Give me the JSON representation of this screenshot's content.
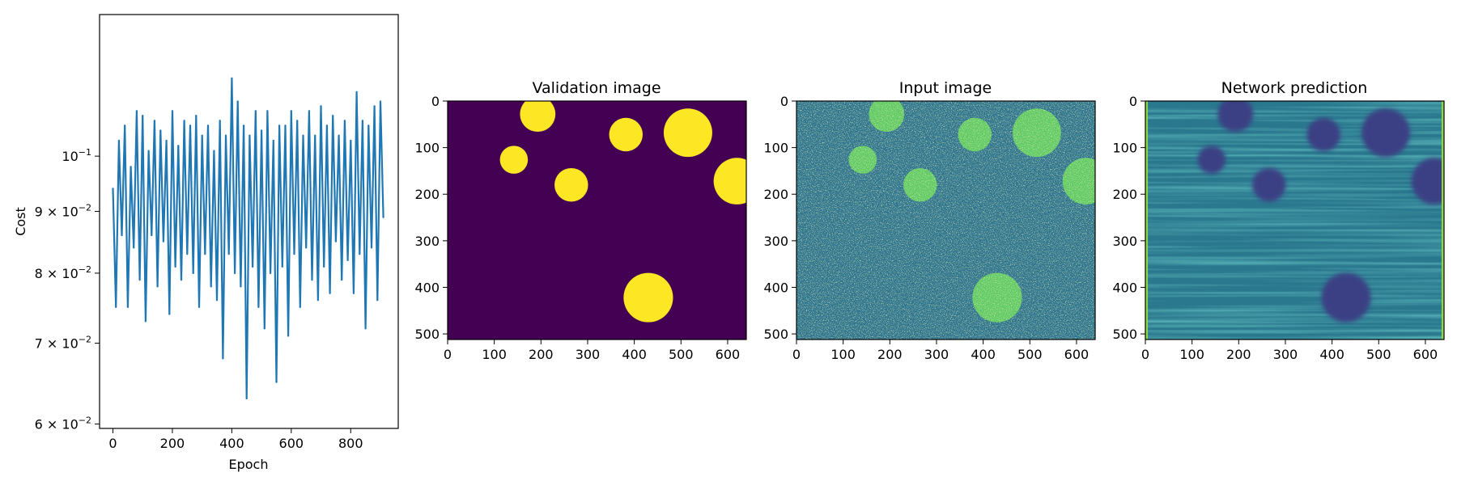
{
  "chart_data": [
    {
      "type": "line",
      "xlabel": "Epoch",
      "ylabel": "Cost",
      "xlim": [
        -45,
        960
      ],
      "ylim": [
        0.0595,
        0.131
      ],
      "yscale": "log",
      "xticks": [
        0,
        200,
        400,
        600,
        800
      ],
      "xtick_labels": [
        "0",
        "200",
        "400",
        "600",
        "800"
      ],
      "yticks": [
        0.06,
        0.07,
        0.08,
        0.09,
        0.1
      ],
      "ytick_labels": [
        {
          "base": "6 × 10",
          "exp": "−2"
        },
        {
          "base": "7 × 10",
          "exp": "−2"
        },
        {
          "base": "8 × 10",
          "exp": "−2"
        },
        {
          "base": "9 × 10",
          "exp": "−2"
        },
        {
          "base": "10",
          "exp": "−1"
        }
      ],
      "line_color": "#1f77b4",
      "grid": false,
      "series": [
        {
          "x": [
            0,
            10,
            20,
            30,
            40,
            50,
            60,
            70,
            80,
            90,
            100,
            110,
            120,
            130,
            140,
            150,
            160,
            170,
            180,
            190,
            200,
            210,
            220,
            230,
            240,
            250,
            260,
            270,
            280,
            290,
            300,
            310,
            320,
            330,
            340,
            350,
            360,
            370,
            380,
            390,
            400,
            410,
            420,
            430,
            440,
            450,
            460,
            470,
            480,
            490,
            500,
            510,
            520,
            530,
            540,
            550,
            560,
            570,
            580,
            590,
            600,
            610,
            620,
            630,
            640,
            650,
            660,
            670,
            680,
            690,
            700,
            710,
            720,
            730,
            740,
            750,
            760,
            770,
            780,
            790,
            800,
            810,
            820,
            830,
            840,
            850,
            860,
            870,
            880,
            890,
            900,
            910
          ],
          "values": [
            0.094,
            0.075,
            0.103,
            0.086,
            0.106,
            0.075,
            0.098,
            0.084,
            0.109,
            0.079,
            0.108,
            0.073,
            0.101,
            0.086,
            0.107,
            0.078,
            0.105,
            0.085,
            0.103,
            0.074,
            0.109,
            0.081,
            0.102,
            0.079,
            0.107,
            0.083,
            0.106,
            0.08,
            0.108,
            0.075,
            0.104,
            0.083,
            0.106,
            0.078,
            0.101,
            0.076,
            0.107,
            0.068,
            0.104,
            0.083,
            0.116,
            0.08,
            0.111,
            0.078,
            0.106,
            0.063,
            0.104,
            0.081,
            0.109,
            0.075,
            0.105,
            0.072,
            0.109,
            0.08,
            0.103,
            0.065,
            0.106,
            0.081,
            0.106,
            0.071,
            0.109,
            0.083,
            0.107,
            0.075,
            0.104,
            0.084,
            0.109,
            0.079,
            0.104,
            0.076,
            0.11,
            0.081,
            0.106,
            0.077,
            0.108,
            0.085,
            0.104,
            0.079,
            0.107,
            0.082,
            0.103,
            0.077,
            0.113,
            0.083,
            0.107,
            0.072,
            0.106,
            0.084,
            0.11,
            0.076,
            0.111,
            0.089
          ]
        }
      ]
    },
    {
      "type": "heatmap",
      "title": "Validation image",
      "xlim": [
        0,
        640
      ],
      "ylim": [
        512,
        0
      ],
      "xticks": [
        0,
        100,
        200,
        300,
        400,
        500,
        600
      ],
      "xtick_labels": [
        "0",
        "100",
        "200",
        "300",
        "400",
        "500",
        "600"
      ],
      "yticks": [
        0,
        100,
        200,
        300,
        400,
        500
      ],
      "ytick_labels": [
        "0",
        "100",
        "200",
        "300",
        "400",
        "500"
      ],
      "background_color": "#440154",
      "circle_color": "#fde725",
      "circles": [
        {
          "cx": 193,
          "cy": 28,
          "r": 38
        },
        {
          "cx": 382,
          "cy": 72,
          "r": 36
        },
        {
          "cx": 515,
          "cy": 68,
          "r": 52
        },
        {
          "cx": 142,
          "cy": 126,
          "r": 30
        },
        {
          "cx": 265,
          "cy": 180,
          "r": 36
        },
        {
          "cx": 620,
          "cy": 172,
          "r": 50
        },
        {
          "cx": 430,
          "cy": 422,
          "r": 53
        }
      ]
    },
    {
      "type": "heatmap",
      "title": "Input image",
      "xlim": [
        0,
        640
      ],
      "ylim": [
        512,
        0
      ],
      "xticks": [
        0,
        100,
        200,
        300,
        400,
        500,
        600
      ],
      "xtick_labels": [
        "0",
        "100",
        "200",
        "300",
        "400",
        "500",
        "600"
      ],
      "yticks": [
        0,
        100,
        200,
        300,
        400,
        500
      ],
      "ytick_labels": [
        "0",
        "100",
        "200",
        "300",
        "400",
        "500"
      ],
      "background_color": "#2c728e",
      "circle_color": "#5ec962"
    },
    {
      "type": "heatmap",
      "title": "Network prediction",
      "xlim": [
        0,
        640
      ],
      "ylim": [
        512,
        0
      ],
      "xticks": [
        0,
        100,
        200,
        300,
        400,
        500,
        600
      ],
      "xtick_labels": [
        "0",
        "100",
        "200",
        "300",
        "400",
        "500",
        "600"
      ],
      "yticks": [
        0,
        100,
        200,
        300,
        400,
        500
      ],
      "ytick_labels": [
        "0",
        "100",
        "200",
        "300",
        "400",
        "500"
      ],
      "background_color": "#2a788e",
      "circle_color": "#3b3f84",
      "edge_color": "#8fd744"
    }
  ]
}
